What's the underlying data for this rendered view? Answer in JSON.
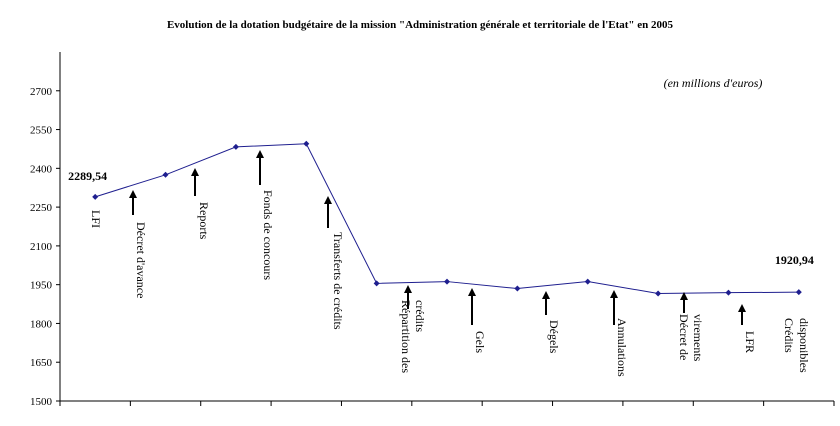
{
  "chart_data": {
    "type": "line",
    "title": "Evolution de la dotation budgétaire de la mission \"Administration générale et territoriale de l'Etat\" en 2005",
    "subtitle": "(en millions d'euros)",
    "categories": [
      null,
      null,
      null,
      null,
      null,
      null,
      null,
      null,
      null,
      null,
      null
    ],
    "values": [
      2289.54,
      2375,
      2483,
      2495,
      1955,
      1962,
      1935,
      1962,
      1916,
      1919,
      1920.94
    ],
    "value_labels": [
      "2289,54",
      null,
      null,
      null,
      null,
      null,
      null,
      null,
      null,
      null,
      "1920,94"
    ],
    "color": "#1f1f8f",
    "ylim": [
      1500,
      2850
    ],
    "yticks": [
      1500,
      1650,
      1800,
      1950,
      2100,
      2250,
      2400,
      2550,
      2700
    ],
    "annotations": [
      {
        "lines": [
          "LFI"
        ]
      },
      {
        "lines": [
          "Décret d'avance"
        ]
      },
      {
        "lines": [
          "Reports"
        ]
      },
      {
        "lines": [
          "Fonds de concours"
        ]
      },
      {
        "lines": [
          "Transferts de crédits"
        ]
      },
      {
        "lines": [
          "Répartition des",
          "crédits"
        ]
      },
      {
        "lines": [
          "Gels"
        ]
      },
      {
        "lines": [
          "Dégels"
        ]
      },
      {
        "lines": [
          "Annulations"
        ]
      },
      {
        "lines": [
          "Décret de",
          "virements"
        ]
      },
      {
        "lines": [
          "LFR"
        ]
      },
      {
        "lines": [
          "Crédits",
          "disponibles"
        ]
      }
    ]
  }
}
